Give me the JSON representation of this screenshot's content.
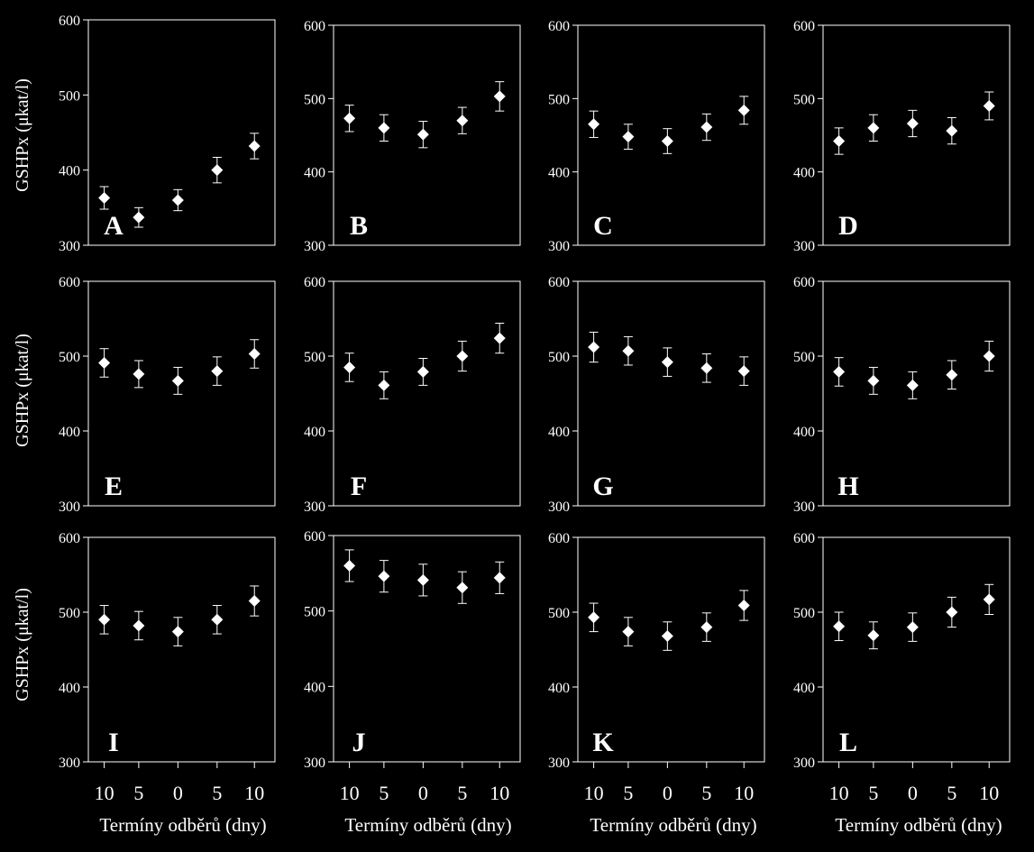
{
  "figure": {
    "ylabel": "GSHPx (μkat/l)",
    "xlabel": "Termíny odběrů (dny)",
    "xticks": [
      "10",
      "5",
      "0",
      "5",
      "10"
    ],
    "ylim": [
      300,
      600
    ],
    "yticks": [
      300,
      400,
      500,
      600
    ]
  },
  "chart_data": [
    {
      "type": "scatter",
      "panel_label": "A",
      "values": [
        363,
        337,
        360,
        400,
        432
      ],
      "error": [
        15,
        13,
        14,
        17,
        17
      ]
    },
    {
      "type": "scatter",
      "panel_label": "B",
      "values": [
        473,
        460,
        451,
        470,
        503
      ],
      "error": [
        18,
        18,
        18,
        18,
        20
      ]
    },
    {
      "type": "scatter",
      "panel_label": "C",
      "values": [
        465,
        448,
        442,
        461,
        484
      ],
      "error": [
        18,
        17,
        17,
        18,
        19
      ]
    },
    {
      "type": "scatter",
      "panel_label": "D",
      "values": [
        442,
        460,
        466,
        456,
        490
      ],
      "error": [
        18,
        18,
        18,
        18,
        19
      ]
    },
    {
      "type": "scatter",
      "panel_label": "E",
      "values": [
        491,
        476,
        467,
        480,
        503
      ],
      "error": [
        19,
        18,
        18,
        19,
        19
      ]
    },
    {
      "type": "scatter",
      "panel_label": "F",
      "values": [
        485,
        461,
        479,
        500,
        524
      ],
      "error": [
        19,
        18,
        18,
        20,
        20
      ]
    },
    {
      "type": "scatter",
      "panel_label": "G",
      "values": [
        512,
        507,
        492,
        484,
        480
      ],
      "error": [
        20,
        19,
        19,
        19,
        19
      ]
    },
    {
      "type": "scatter",
      "panel_label": "H",
      "values": [
        479,
        467,
        461,
        475,
        500
      ],
      "error": [
        19,
        18,
        18,
        19,
        20
      ]
    },
    {
      "type": "scatter",
      "panel_label": "I",
      "values": [
        490,
        482,
        474,
        490,
        515
      ],
      "error": [
        19,
        19,
        19,
        19,
        20
      ]
    },
    {
      "type": "scatter",
      "panel_label": "J",
      "values": [
        560,
        546,
        541,
        531,
        544
      ],
      "error": [
        21,
        21,
        21,
        21,
        21
      ]
    },
    {
      "type": "scatter",
      "panel_label": "K",
      "values": [
        493,
        474,
        468,
        480,
        509
      ],
      "error": [
        19,
        19,
        19,
        19,
        20
      ]
    },
    {
      "type": "scatter",
      "panel_label": "L",
      "values": [
        481,
        469,
        480,
        500,
        517
      ],
      "error": [
        19,
        18,
        19,
        20,
        20
      ]
    }
  ]
}
